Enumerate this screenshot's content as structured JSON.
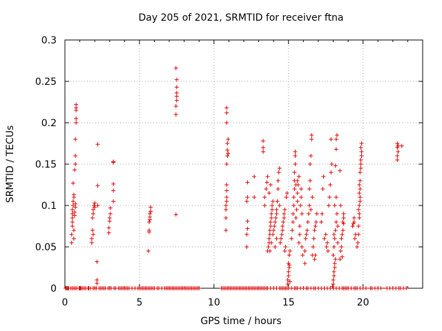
{
  "chart_data": {
    "type": "scatter",
    "title": "Day 205 of 2021, SRMTID for receiver ftna",
    "xlabel": "GPS time / hours",
    "ylabel": "SRMTID / TECUs",
    "xlim": [
      0,
      24
    ],
    "ylim": [
      0,
      0.3
    ],
    "xticks": [
      0,
      5,
      10,
      15,
      20
    ],
    "yticks": [
      0,
      0.05,
      0.1,
      0.15,
      0.2,
      0.25,
      0.3
    ],
    "ytick_labels": [
      "0",
      "0.05",
      "0.1",
      "0.15",
      "0.2",
      "0.25",
      "0.3"
    ],
    "grid": true,
    "legend": "none",
    "marker": "plus",
    "color": "#e00000",
    "points": [
      [
        0.45,
        0.055
      ],
      [
        0.45,
        0.065
      ],
      [
        0.5,
        0.075
      ],
      [
        0.5,
        0.08
      ],
      [
        0.5,
        0.085
      ],
      [
        0.5,
        0.09
      ],
      [
        0.5,
        0.095
      ],
      [
        0.55,
        0.1
      ],
      [
        0.55,
        0.105
      ],
      [
        0.6,
        0.11
      ],
      [
        0.6,
        0.113
      ],
      [
        0.55,
        0.127
      ],
      [
        0.6,
        0.06
      ],
      [
        0.6,
        0.07
      ],
      [
        0.65,
        0.088
      ],
      [
        0.65,
        0.092
      ],
      [
        0.7,
        0.098
      ],
      [
        0.7,
        0.102
      ],
      [
        0.65,
        0.143
      ],
      [
        0.7,
        0.15
      ],
      [
        0.7,
        0.16
      ],
      [
        0.7,
        0.18
      ],
      [
        0.75,
        0.2
      ],
      [
        0.75,
        0.205
      ],
      [
        0.75,
        0.215
      ],
      [
        0.75,
        0.218
      ],
      [
        0.75,
        0.222
      ],
      [
        1.8,
        0.055
      ],
      [
        1.8,
        0.06
      ],
      [
        1.85,
        0.07
      ],
      [
        1.85,
        0.085
      ],
      [
        1.9,
        0.09
      ],
      [
        1.9,
        0.095
      ],
      [
        1.95,
        0.1
      ],
      [
        2.0,
        0.103
      ],
      [
        2.0,
        0.098
      ],
      [
        1.9,
        0.065
      ],
      [
        2.15,
        0.006
      ],
      [
        2.15,
        0.01
      ],
      [
        2.15,
        0.032
      ],
      [
        2.2,
        0.1
      ],
      [
        2.2,
        0.124
      ],
      [
        2.2,
        0.174
      ],
      [
        2.95,
        0.067
      ],
      [
        2.95,
        0.073
      ],
      [
        3.0,
        0.081
      ],
      [
        3.0,
        0.085
      ],
      [
        3.05,
        0.09
      ],
      [
        3.05,
        0.097
      ],
      [
        3.25,
        0.105
      ],
      [
        3.25,
        0.118
      ],
      [
        3.25,
        0.126
      ],
      [
        3.25,
        0.152
      ],
      [
        3.25,
        0.153
      ],
      [
        5.6,
        0.045
      ],
      [
        5.65,
        0.068
      ],
      [
        5.65,
        0.07
      ],
      [
        5.65,
        0.08
      ],
      [
        5.7,
        0.083
      ],
      [
        5.7,
        0.086
      ],
      [
        5.7,
        0.09
      ],
      [
        5.75,
        0.093
      ],
      [
        5.75,
        0.098
      ],
      [
        7.45,
        0.089
      ],
      [
        7.45,
        0.21
      ],
      [
        7.45,
        0.22
      ],
      [
        7.5,
        0.227
      ],
      [
        7.5,
        0.232
      ],
      [
        7.5,
        0.236
      ],
      [
        7.5,
        0.243
      ],
      [
        7.5,
        0.252
      ],
      [
        7.45,
        0.266
      ],
      [
        10.8,
        0.07
      ],
      [
        10.8,
        0.085
      ],
      [
        10.8,
        0.095
      ],
      [
        10.8,
        0.1
      ],
      [
        10.85,
        0.105
      ],
      [
        10.85,
        0.11
      ],
      [
        10.85,
        0.118
      ],
      [
        10.85,
        0.125
      ],
      [
        10.85,
        0.15
      ],
      [
        10.9,
        0.16
      ],
      [
        10.9,
        0.167
      ],
      [
        10.9,
        0.175
      ],
      [
        10.95,
        0.18
      ],
      [
        10.95,
        0.163
      ],
      [
        10.85,
        0.2
      ],
      [
        10.85,
        0.212
      ],
      [
        10.85,
        0.218
      ],
      [
        12.2,
        0.05
      ],
      [
        12.2,
        0.065
      ],
      [
        12.25,
        0.072
      ],
      [
        12.25,
        0.081
      ],
      [
        12.2,
        0.105
      ],
      [
        12.25,
        0.11
      ],
      [
        12.25,
        0.128
      ],
      [
        12.7,
        0.11
      ],
      [
        12.7,
        0.135
      ],
      [
        13.3,
        0.165
      ],
      [
        13.3,
        0.17
      ],
      [
        13.3,
        0.178
      ],
      [
        13.4,
        0.1
      ],
      [
        13.4,
        0.11
      ],
      [
        13.5,
        0.12
      ],
      [
        13.55,
        0.128
      ],
      [
        13.6,
        0.135
      ],
      [
        13.6,
        0.045
      ],
      [
        13.65,
        0.05
      ],
      [
        13.7,
        0.055
      ],
      [
        13.7,
        0.06
      ],
      [
        13.75,
        0.065
      ],
      [
        13.75,
        0.07
      ],
      [
        13.8,
        0.075
      ],
      [
        13.8,
        0.08
      ],
      [
        13.85,
        0.085
      ],
      [
        13.85,
        0.09
      ],
      [
        13.9,
        0.095
      ],
      [
        13.9,
        0.1
      ],
      [
        13.95,
        0.105
      ],
      [
        13.7,
        0.115
      ],
      [
        13.8,
        0.125
      ],
      [
        13.75,
        0.045
      ],
      [
        13.85,
        0.055
      ],
      [
        13.95,
        0.065
      ],
      [
        14.0,
        0.07
      ],
      [
        14.05,
        0.075
      ],
      [
        14.1,
        0.08
      ],
      [
        14.15,
        0.085
      ],
      [
        14.2,
        0.09
      ],
      [
        14.2,
        0.095
      ],
      [
        14.25,
        0.105
      ],
      [
        14.3,
        0.12
      ],
      [
        14.3,
        0.13
      ],
      [
        14.35,
        0.14
      ],
      [
        14.4,
        0.145
      ],
      [
        14.4,
        0.1
      ],
      [
        14.45,
        0.055
      ],
      [
        14.5,
        0.06
      ],
      [
        14.55,
        0.065
      ],
      [
        14.6,
        0.07
      ],
      [
        14.6,
        0.075
      ],
      [
        14.65,
        0.08
      ],
      [
        14.7,
        0.085
      ],
      [
        14.7,
        0.09
      ],
      [
        14.75,
        0.095
      ],
      [
        14.75,
        0.045
      ],
      [
        14.8,
        0.05
      ],
      [
        14.85,
        0.11
      ],
      [
        14.9,
        0.115
      ],
      [
        14.1,
        0.05
      ],
      [
        14.2,
        0.06
      ],
      [
        14.95,
        0.005
      ],
      [
        14.95,
        0.01
      ],
      [
        15.0,
        0.015
      ],
      [
        15.0,
        0.02
      ],
      [
        15.05,
        0.025
      ],
      [
        15.05,
        0.028
      ],
      [
        15.0,
        0.03
      ],
      [
        15.1,
        0.008
      ],
      [
        15.05,
        0.04
      ],
      [
        15.1,
        0.045
      ],
      [
        15.2,
        0.06
      ],
      [
        15.25,
        0.07
      ],
      [
        15.3,
        0.08
      ],
      [
        15.3,
        0.09
      ],
      [
        15.35,
        0.1
      ],
      [
        15.35,
        0.11
      ],
      [
        15.4,
        0.12
      ],
      [
        15.4,
        0.13
      ],
      [
        15.4,
        0.14
      ],
      [
        15.45,
        0.15
      ],
      [
        15.45,
        0.16
      ],
      [
        15.45,
        0.165
      ],
      [
        15.5,
        0.085
      ],
      [
        15.55,
        0.095
      ],
      [
        15.6,
        0.105
      ],
      [
        15.6,
        0.115
      ],
      [
        15.65,
        0.125
      ],
      [
        15.7,
        0.135
      ],
      [
        15.7,
        0.055
      ],
      [
        15.75,
        0.065
      ],
      [
        15.75,
        0.075
      ],
      [
        15.8,
        0.1
      ],
      [
        15.85,
        0.11
      ],
      [
        15.85,
        0.12
      ],
      [
        15.5,
        0.125
      ],
      [
        15.6,
        0.13
      ],
      [
        15.9,
        0.09
      ],
      [
        15.9,
        0.05
      ],
      [
        15.95,
        0.04
      ],
      [
        16.1,
        0.03
      ],
      [
        16.1,
        0.045
      ],
      [
        16.15,
        0.06
      ],
      [
        16.2,
        0.065
      ],
      [
        16.25,
        0.07
      ],
      [
        16.3,
        0.08
      ],
      [
        16.35,
        0.09
      ],
      [
        16.4,
        0.1
      ],
      [
        16.4,
        0.12
      ],
      [
        16.45,
        0.13
      ],
      [
        16.45,
        0.15
      ],
      [
        16.5,
        0.16
      ],
      [
        16.55,
        0.18
      ],
      [
        16.55,
        0.185
      ],
      [
        16.6,
        0.04
      ],
      [
        16.65,
        0.05
      ],
      [
        16.7,
        0.06
      ],
      [
        16.75,
        0.07
      ],
      [
        16.8,
        0.075
      ],
      [
        16.85,
        0.08
      ],
      [
        16.9,
        0.09
      ],
      [
        16.5,
        0.095
      ],
      [
        16.6,
        0.11
      ],
      [
        16.75,
        0.035
      ],
      [
        16.8,
        0.04
      ],
      [
        17.2,
        0.08
      ],
      [
        17.25,
        0.09
      ],
      [
        17.3,
        0.12
      ],
      [
        17.35,
        0.135
      ],
      [
        17.4,
        0.06
      ],
      [
        17.5,
        0.065
      ],
      [
        17.55,
        0.05
      ],
      [
        17.6,
        0.055
      ],
      [
        17.65,
        0.045
      ],
      [
        17.7,
        0.1
      ],
      [
        17.75,
        0.11
      ],
      [
        17.8,
        0.125
      ],
      [
        17.85,
        0.14
      ],
      [
        17.85,
        0.18
      ],
      [
        17.9,
        0.15
      ],
      [
        17.95,
        0.002
      ],
      [
        18.0,
        0.005
      ],
      [
        18.0,
        0.01
      ],
      [
        18.05,
        0.015
      ],
      [
        18.05,
        0.02
      ],
      [
        18.1,
        0.025
      ],
      [
        18.1,
        0.03
      ],
      [
        18.15,
        0.035
      ],
      [
        18.0,
        0.04
      ],
      [
        18.05,
        0.05
      ],
      [
        18.1,
        0.06
      ],
      [
        18.15,
        0.07
      ],
      [
        18.2,
        0.08
      ],
      [
        18.25,
        0.09
      ],
      [
        18.1,
        0.1
      ],
      [
        18.2,
        0.11
      ],
      [
        18.15,
        0.148
      ],
      [
        18.2,
        0.168
      ],
      [
        18.2,
        0.18
      ],
      [
        18.25,
        0.185
      ],
      [
        18.05,
        0.065
      ],
      [
        18.3,
        0.075
      ],
      [
        18.3,
        0.055
      ],
      [
        18.45,
        0.035
      ],
      [
        18.5,
        0.045
      ],
      [
        18.55,
        0.05
      ],
      [
        18.55,
        0.06
      ],
      [
        18.6,
        0.065
      ],
      [
        18.65,
        0.07
      ],
      [
        18.65,
        0.08
      ],
      [
        18.7,
        0.085
      ],
      [
        18.7,
        0.09
      ],
      [
        18.5,
        0.1
      ],
      [
        18.6,
        0.038
      ],
      [
        18.45,
        0.142
      ],
      [
        18.7,
        0.078
      ],
      [
        19.3,
        0.075
      ],
      [
        19.35,
        0.078
      ],
      [
        19.4,
        0.08
      ],
      [
        19.4,
        0.085
      ],
      [
        19.45,
        0.06
      ],
      [
        19.5,
        0.065
      ],
      [
        19.6,
        0.05
      ],
      [
        19.65,
        0.055
      ],
      [
        19.7,
        0.065
      ],
      [
        19.7,
        0.075
      ],
      [
        19.75,
        0.085
      ],
      [
        19.75,
        0.09
      ],
      [
        19.7,
        0.095
      ],
      [
        19.75,
        0.1
      ],
      [
        19.8,
        0.105
      ],
      [
        19.8,
        0.11
      ],
      [
        19.75,
        0.115
      ],
      [
        19.8,
        0.12
      ],
      [
        19.75,
        0.125
      ],
      [
        19.8,
        0.13
      ],
      [
        19.8,
        0.14
      ],
      [
        19.85,
        0.145
      ],
      [
        19.85,
        0.15
      ],
      [
        19.85,
        0.155
      ],
      [
        19.9,
        0.16
      ],
      [
        19.9,
        0.165
      ],
      [
        19.85,
        0.17
      ],
      [
        19.9,
        0.175
      ],
      [
        22.3,
        0.155
      ],
      [
        22.3,
        0.16
      ],
      [
        22.35,
        0.165
      ],
      [
        22.3,
        0.17
      ],
      [
        22.35,
        0.172
      ],
      [
        22.3,
        0.175
      ],
      [
        22.6,
        0.172
      ]
    ],
    "zero_points": [
      0.05,
      0.1,
      0.15,
      0.2,
      0.25,
      0.4,
      0.5,
      0.6,
      0.7,
      0.8,
      0.95,
      1.0,
      1.05,
      1.1,
      1.2,
      1.3,
      1.4,
      1.55,
      1.6,
      1.7,
      1.9,
      2.0,
      2.1,
      2.3,
      2.4,
      2.5,
      2.6,
      2.7,
      2.9,
      3.0,
      3.1,
      3.3,
      3.4,
      3.6,
      3.7,
      3.8,
      3.9,
      4.0,
      4.1,
      4.2,
      4.3,
      4.5,
      4.7,
      4.9,
      5.0,
      5.1,
      5.2,
      5.3,
      5.4,
      5.5,
      5.6,
      5.7,
      5.8,
      5.9,
      6.0,
      6.2,
      6.3,
      6.5,
      6.7,
      6.8,
      6.9,
      7.0,
      7.1,
      7.2,
      7.3,
      7.4,
      7.5,
      7.6,
      7.7,
      7.8,
      7.9,
      8.0,
      8.1,
      8.2,
      8.3,
      8.4,
      8.5,
      8.6,
      8.7,
      8.8,
      8.9,
      9.0,
      10.5,
      10.6,
      10.7,
      10.8,
      10.9,
      11.0,
      11.1,
      11.2,
      11.3,
      11.4,
      11.5,
      11.6,
      11.7,
      11.8,
      11.9,
      12.0,
      12.1,
      12.2,
      12.3,
      12.4,
      12.5,
      12.6,
      12.7,
      12.8,
      12.9,
      13.0,
      13.1,
      13.2,
      13.3,
      13.4,
      13.5,
      13.6,
      13.8,
      14.0,
      14.2,
      14.4,
      14.5,
      14.6,
      14.7,
      14.8,
      14.9,
      15.0,
      15.2,
      15.4,
      15.5,
      15.6,
      15.8,
      16.0,
      16.2,
      16.3,
      16.5,
      16.7,
      16.8,
      17.0,
      17.2,
      17.4,
      17.6,
      17.8,
      18.0,
      18.2,
      18.4,
      18.6,
      18.7,
      18.8,
      18.9,
      19.0,
      19.2,
      19.4,
      19.5,
      19.6,
      19.8,
      20.0,
      20.2,
      20.5,
      20.6,
      20.8,
      21.0,
      21.2,
      21.6,
      21.8,
      22.0,
      22.2,
      22.4,
      22.5,
      22.7,
      22.9
    ]
  }
}
